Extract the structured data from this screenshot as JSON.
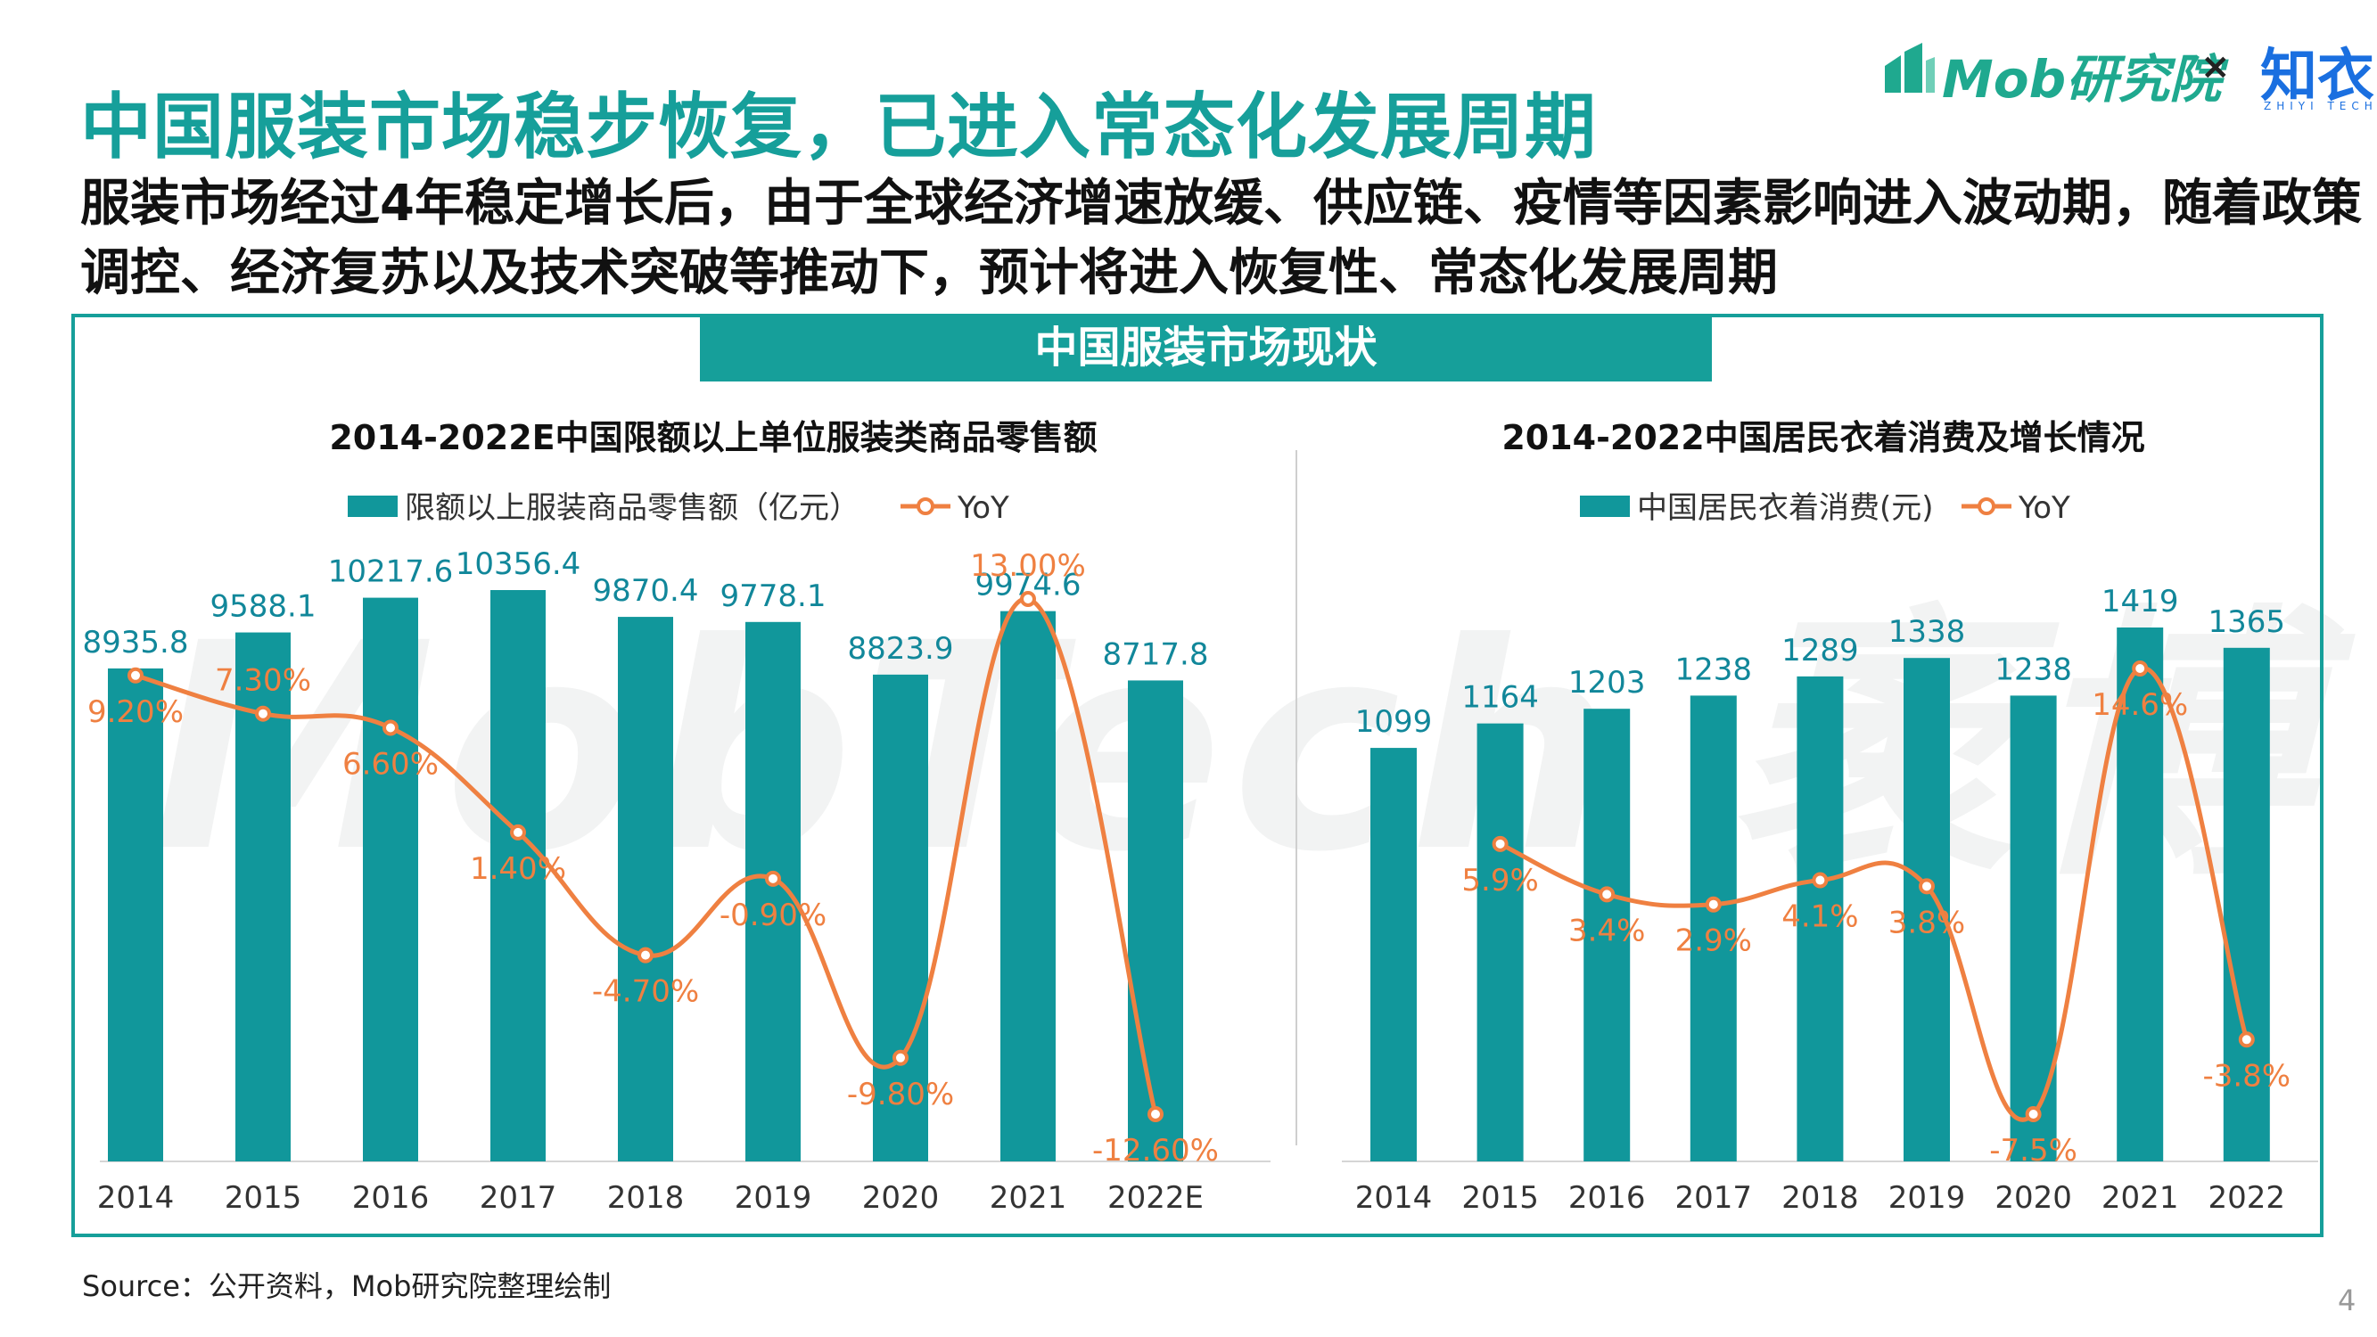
{
  "title": "中国服装市场稳步恢复，已进入常态化发展周期",
  "subtitle": "服装市场经过4年稳定增长后，由于全球经济增速放缓、供应链、疫情等因素影响进入波动期，随着政策调控、经济复苏以及技术突破等推动下，预计将进入恢复性、常态化发展周期",
  "logos": {
    "mob": "Mob研究院",
    "separator": "×",
    "zhiyi": "知衣",
    "zhiyi_sub": "ZHIYI TECH"
  },
  "banner": "中国服装市场现状",
  "watermark": "MobTech 袤博",
  "source": "Source：公开资料，Mob研究院整理绘制",
  "page_number": "4",
  "colors": {
    "bar": "#11979b",
    "line": "#ef8041",
    "accent": "#169f9a"
  },
  "chart_data": [
    {
      "type": "bar",
      "title": "2014-2022E中国限额以上单位服装类商品零售额",
      "categories": [
        "2014",
        "2015",
        "2016",
        "2017",
        "2018",
        "2019",
        "2020",
        "2021",
        "2022E"
      ],
      "series": [
        {
          "name": "限额以上服装商品零售额（亿元）",
          "type": "bar",
          "values": [
            8935.8,
            9588.1,
            10217.6,
            10356.4,
            9870.4,
            9778.1,
            8823.9,
            9974.6,
            8717.8
          ],
          "labels": [
            "8935.8",
            "9588.1",
            "10217.6",
            "10356.4",
            "9870.4",
            "9778.1",
            "8823.9",
            "9974.6",
            "8717.8"
          ]
        },
        {
          "name": "YoY",
          "type": "line",
          "values": [
            9.2,
            7.3,
            6.6,
            1.4,
            -4.7,
            -0.9,
            -9.8,
            13.0,
            -12.6
          ],
          "labels": [
            "9.20%",
            "7.30%",
            "6.60%",
            "1.40%",
            "-4.70%",
            "-0.90%",
            "-9.80%",
            "13.00%",
            "-12.60%"
          ]
        }
      ],
      "legend": "top"
    },
    {
      "type": "bar",
      "title": "2014-2022中国居民衣着消费及增长情况",
      "categories": [
        "2014",
        "2015",
        "2016",
        "2017",
        "2018",
        "2019",
        "2020",
        "2021",
        "2022"
      ],
      "series": [
        {
          "name": "中国居民衣着消费(元)",
          "type": "bar",
          "values": [
            1099,
            1164,
            1203,
            1238,
            1289,
            1338,
            1238,
            1419,
            1365
          ],
          "labels": [
            "1099",
            "1164",
            "1203",
            "1238",
            "1289",
            "1338",
            "1238",
            "1419",
            "1365"
          ]
        },
        {
          "name": "YoY",
          "type": "line",
          "values": [
            null,
            5.9,
            3.4,
            2.9,
            4.1,
            3.8,
            -7.5,
            14.6,
            -3.8
          ],
          "labels": [
            "",
            "5.9%",
            "3.4%",
            "2.9%",
            "4.1%",
            "3.8%",
            "-7.5%",
            "14.6%",
            "-3.8%"
          ]
        }
      ],
      "legend": "top"
    }
  ]
}
